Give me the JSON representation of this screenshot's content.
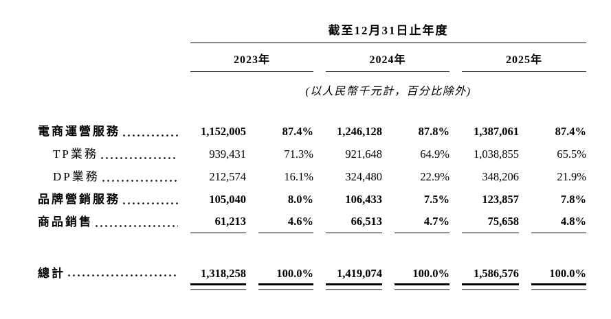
{
  "table": {
    "title": "截至12月31日止年度",
    "unit_note": "(以人民幣千元計，百分比除外)",
    "year_headers": [
      "2023年",
      "2024年",
      "2025年"
    ],
    "rows": [
      {
        "label": "電商運營服務",
        "values": [
          "1,152,005",
          "87.4%",
          "1,246,128",
          "87.8%",
          "1,387,061",
          "87.4%"
        ]
      },
      {
        "label": "TP業務",
        "values": [
          "939,431",
          "71.3%",
          "921,648",
          "64.9%",
          "1,038,855",
          "65.5%"
        ]
      },
      {
        "label": "DP業務",
        "values": [
          "212,574",
          "16.1%",
          "324,480",
          "22.9%",
          "348,206",
          "21.9%"
        ]
      },
      {
        "label": "品牌營銷服務",
        "values": [
          "105,040",
          "8.0%",
          "106,433",
          "7.5%",
          "123,857",
          "7.8%"
        ]
      },
      {
        "label": "商品銷售",
        "values": [
          "61,213",
          "4.6%",
          "66,513",
          "4.7%",
          "75,658",
          "4.8%"
        ]
      }
    ],
    "total_row": {
      "label": "總計",
      "values": [
        "1,318,258",
        "100.0%",
        "1,419,074",
        "100.0%",
        "1,586,576",
        "100.0%"
      ]
    }
  },
  "colors": {
    "text": "#000000",
    "rule": "#000000",
    "background": "#ffffff"
  }
}
